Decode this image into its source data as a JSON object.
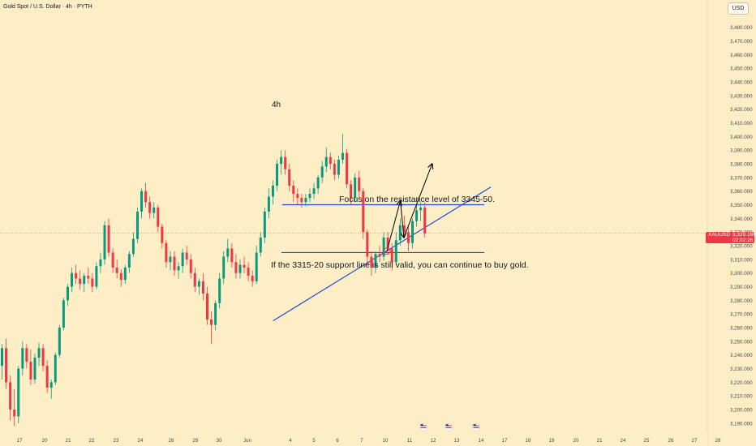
{
  "header": {
    "title": "Gold Spot / U.S. Dollar · 4h · PYTH",
    "currency": "USD"
  },
  "price_tag": {
    "symbol": "XAUUSD",
    "price": "3,329.166",
    "countdown": "02:02:26"
  },
  "colors": {
    "background": "#fdeec6",
    "up": "#089981",
    "down": "#f23645",
    "trendline": "#2448d6",
    "text": "#131722",
    "axis_text": "#4a4a4a"
  },
  "chart_data": {
    "type": "candlestick",
    "title": "Gold Spot / U.S. Dollar · 4h · PYTH",
    "timeframe": "4h",
    "ylim": [
      3184,
      3500
    ],
    "y_axis_position": "right",
    "grid": false,
    "y_ticks": [
      "3,480.000",
      "3,470.000",
      "3,460.000",
      "3,450.000",
      "3,440.000",
      "3,430.000",
      "3,420.000",
      "3,410.000",
      "3,400.000",
      "3,390.000",
      "3,380.000",
      "3,370.000",
      "3,360.000",
      "3,350.000",
      "3,340.000",
      "3,330.000",
      "3,320.000",
      "3,310.000",
      "3,300.000",
      "3,290.000",
      "3,280.000",
      "3,270.000",
      "3,260.000",
      "3,250.000",
      "3,240.000",
      "3,230.000",
      "3,220.000",
      "3,210.000",
      "3,200.000",
      "3,190.000"
    ],
    "y_tick_values": [
      3480,
      3470,
      3460,
      3450,
      3440,
      3430,
      3420,
      3410,
      3400,
      3390,
      3380,
      3370,
      3360,
      3350,
      3340,
      3330,
      3320,
      3310,
      3300,
      3290,
      3280,
      3270,
      3260,
      3250,
      3240,
      3230,
      3220,
      3210,
      3200,
      3190
    ],
    "x_tick_labels": [
      "17",
      "20",
      "21",
      "22",
      "23",
      "24",
      "28",
      "29",
      "30",
      "Jun",
      "4",
      "5",
      "6",
      "7",
      "10",
      "11",
      "12",
      "13",
      "14",
      "17",
      "18",
      "19",
      "20",
      "21",
      "24",
      "25",
      "26",
      "27",
      "28"
    ],
    "current_price": 3329.166,
    "candles": [
      [
        3232,
        3248,
        3222,
        3245
      ],
      [
        3245,
        3252,
        3215,
        3220
      ],
      [
        3220,
        3225,
        3192,
        3200
      ],
      [
        3200,
        3215,
        3188,
        3195
      ],
      [
        3195,
        3232,
        3190,
        3230
      ],
      [
        3230,
        3250,
        3225,
        3245
      ],
      [
        3245,
        3248,
        3230,
        3235
      ],
      [
        3235,
        3244,
        3218,
        3222
      ],
      [
        3222,
        3241,
        3219,
        3238
      ],
      [
        3238,
        3249,
        3232,
        3245
      ],
      [
        3245,
        3248,
        3228,
        3232
      ],
      [
        3232,
        3236,
        3212,
        3216
      ],
      [
        3216,
        3222,
        3208,
        3220
      ],
      [
        3220,
        3242,
        3218,
        3240
      ],
      [
        3240,
        3262,
        3238,
        3260
      ],
      [
        3260,
        3282,
        3258,
        3280
      ],
      [
        3280,
        3292,
        3276,
        3290
      ],
      [
        3290,
        3304,
        3286,
        3300
      ],
      [
        3300,
        3306,
        3292,
        3296
      ],
      [
        3296,
        3302,
        3288,
        3292
      ],
      [
        3292,
        3300,
        3286,
        3298
      ],
      [
        3298,
        3304,
        3292,
        3296
      ],
      [
        3296,
        3300,
        3286,
        3290
      ],
      [
        3290,
        3308,
        3288,
        3305
      ],
      [
        3305,
        3315,
        3300,
        3310
      ],
      [
        3310,
        3338,
        3306,
        3335
      ],
      [
        3335,
        3340,
        3312,
        3315
      ],
      [
        3315,
        3318,
        3300,
        3304
      ],
      [
        3304,
        3310,
        3296,
        3300
      ],
      [
        3300,
        3303,
        3290,
        3295
      ],
      [
        3295,
        3306,
        3292,
        3304
      ],
      [
        3304,
        3316,
        3300,
        3314
      ],
      [
        3314,
        3330,
        3312,
        3325
      ],
      [
        3325,
        3348,
        3322,
        3345
      ],
      [
        3345,
        3362,
        3340,
        3360
      ],
      [
        3360,
        3366,
        3348,
        3352
      ],
      [
        3352,
        3356,
        3340,
        3344
      ],
      [
        3344,
        3352,
        3340,
        3348
      ],
      [
        3348,
        3350,
        3330,
        3334
      ],
      [
        3334,
        3336,
        3318,
        3322
      ],
      [
        3322,
        3324,
        3304,
        3308
      ],
      [
        3308,
        3316,
        3302,
        3312
      ],
      [
        3312,
        3316,
        3298,
        3302
      ],
      [
        3302,
        3308,
        3296,
        3305
      ],
      [
        3305,
        3318,
        3300,
        3315
      ],
      [
        3315,
        3320,
        3306,
        3310
      ],
      [
        3310,
        3314,
        3296,
        3300
      ],
      [
        3300,
        3304,
        3286,
        3290
      ],
      [
        3290,
        3296,
        3284,
        3294
      ],
      [
        3294,
        3300,
        3280,
        3285
      ],
      [
        3285,
        3290,
        3262,
        3266
      ],
      [
        3266,
        3272,
        3248,
        3262
      ],
      [
        3262,
        3280,
        3258,
        3278
      ],
      [
        3278,
        3300,
        3274,
        3296
      ],
      [
        3296,
        3316,
        3292,
        3312
      ],
      [
        3312,
        3325,
        3308,
        3318
      ],
      [
        3318,
        3322,
        3304,
        3308
      ],
      [
        3308,
        3314,
        3296,
        3300
      ],
      [
        3300,
        3310,
        3296,
        3306
      ],
      [
        3306,
        3312,
        3300,
        3304
      ],
      [
        3304,
        3308,
        3294,
        3298
      ],
      [
        3298,
        3302,
        3290,
        3294
      ],
      [
        3294,
        3320,
        3292,
        3315
      ],
      [
        3315,
        3330,
        3312,
        3326
      ],
      [
        3326,
        3348,
        3322,
        3345
      ],
      [
        3345,
        3362,
        3340,
        3356
      ],
      [
        3356,
        3368,
        3350,
        3364
      ],
      [
        3364,
        3383,
        3360,
        3380
      ],
      [
        3380,
        3390,
        3372,
        3385
      ],
      [
        3385,
        3390,
        3372,
        3376
      ],
      [
        3376,
        3380,
        3360,
        3364
      ],
      [
        3364,
        3368,
        3352,
        3358
      ],
      [
        3358,
        3362,
        3350,
        3355
      ],
      [
        3355,
        3358,
        3348,
        3352
      ],
      [
        3352,
        3358,
        3349,
        3355
      ],
      [
        3355,
        3362,
        3352,
        3358
      ],
      [
        3358,
        3366,
        3354,
        3362
      ],
      [
        3362,
        3372,
        3358,
        3370
      ],
      [
        3370,
        3382,
        3366,
        3378
      ],
      [
        3378,
        3392,
        3374,
        3385
      ],
      [
        3385,
        3388,
        3376,
        3380
      ],
      [
        3380,
        3383,
        3368,
        3372
      ],
      [
        3372,
        3386,
        3369,
        3383
      ],
      [
        3383,
        3402,
        3380,
        3388
      ],
      [
        3388,
        3391,
        3362,
        3365
      ],
      [
        3365,
        3368,
        3350,
        3355
      ],
      [
        3355,
        3373,
        3352,
        3370
      ],
      [
        3370,
        3375,
        3355,
        3360
      ],
      [
        3360,
        3362,
        3325,
        3330
      ],
      [
        3330,
        3332,
        3305,
        3312
      ],
      [
        3312,
        3316,
        3298,
        3304
      ],
      [
        3304,
        3316,
        3300,
        3314
      ],
      [
        3314,
        3320,
        3308,
        3312
      ],
      [
        3312,
        3330,
        3309,
        3326
      ],
      [
        3326,
        3330,
        3314,
        3318
      ],
      [
        3318,
        3322,
        3302,
        3308
      ],
      [
        3308,
        3330,
        3306,
        3324
      ],
      [
        3324,
        3340,
        3320,
        3335
      ],
      [
        3335,
        3342,
        3326,
        3330
      ],
      [
        3330,
        3334,
        3316,
        3322
      ],
      [
        3322,
        3340,
        3318,
        3338
      ],
      [
        3338,
        3350,
        3334,
        3346
      ],
      [
        3346,
        3352,
        3338,
        3348
      ],
      [
        3348,
        3352,
        3326,
        3329
      ]
    ],
    "lines": {
      "resistance": 3350,
      "support": 3315,
      "uptrend": [
        {
          "x": 0.386,
          "y": 3265
        },
        {
          "x": 0.694,
          "y": 3363
        }
      ]
    },
    "projection": [
      {
        "x": 0.547,
        "y": 3316
      },
      {
        "x": 0.566,
        "y": 3353
      },
      {
        "x": 0.571,
        "y": 3326
      },
      {
        "x": 0.611,
        "y": 3380
      }
    ],
    "annotations": {
      "timeframe_label": "4h",
      "resistance_note": "Focus on the resistance level of 3345-50.",
      "support_note": "If the 3315-20 support line is still valid, you can continue to buy gold."
    },
    "event_icon_count": 3
  }
}
